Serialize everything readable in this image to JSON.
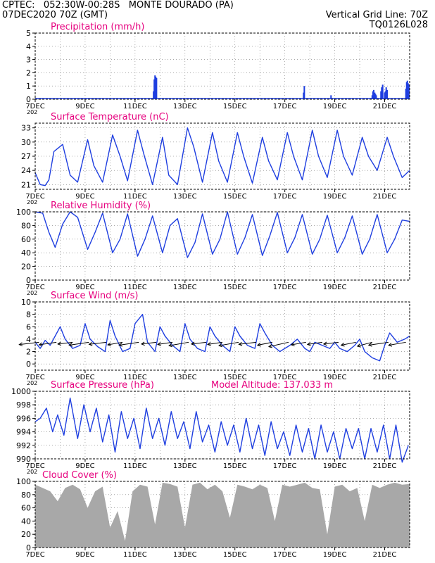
{
  "header": {
    "line1": "CPTEC:   052:30W-00:28S   MONTE DOURADO (PA)",
    "line2": "07DEC2020 70Z (GMT)",
    "grid_note": "Vertical Grid Line: 70Z",
    "model_id": "TQ0126L028",
    "model_altitude": "Model Altitude: 137.033 m",
    "text_color": "#ff8c00",
    "title_color": "#e6007e",
    "series_color": "#1f3fe0",
    "cloud_color": "#a8a8a8"
  },
  "x_axis": {
    "tick_labels": [
      "7DEC",
      "9DEC",
      "11DEC",
      "13DEC",
      "15DEC",
      "17DEC",
      "19DEC",
      "21DEC"
    ],
    "tick_days": [
      0,
      2,
      4,
      6,
      8,
      10,
      12,
      14
    ],
    "range_days": [
      0,
      15
    ],
    "clipped_year_label": "202"
  },
  "chart_data": [
    {
      "type": "bar",
      "title": "Precipitation (mm/h)",
      "ylim": [
        0,
        5
      ],
      "yticks": [
        0,
        1,
        2,
        3,
        4,
        5
      ],
      "grid": true,
      "series": [
        {
          "x_days": [
            4.74,
            4.77,
            4.8,
            4.83,
            4.86,
            10.75,
            10.78,
            11.85,
            13.5,
            13.53,
            13.56,
            13.6,
            13.63,
            13.66,
            13.85,
            13.88,
            13.92,
            14.0,
            14.03,
            14.06,
            14.1,
            14.85,
            14.88,
            14.91,
            14.94,
            14.97
          ],
          "values": [
            0.6,
            1.5,
            1.8,
            1.7,
            1.6,
            0.5,
            1.0,
            0.3,
            0.3,
            0.6,
            0.7,
            0.5,
            0.4,
            0.3,
            0.6,
            0.9,
            1.1,
            0.5,
            0.6,
            0.9,
            0.7,
            0.8,
            1.3,
            1.4,
            1.2,
            1.1
          ]
        }
      ]
    },
    {
      "type": "line",
      "title": "Surface Temperature (nC)",
      "ylim": [
        20,
        34
      ],
      "yticks": [
        21,
        24,
        27,
        30,
        33
      ],
      "grid": true,
      "series": [
        {
          "x_days": [
            0,
            0.2,
            0.4,
            0.55,
            0.75,
            1.1,
            1.4,
            1.7,
            2.1,
            2.35,
            2.7,
            3.1,
            3.4,
            3.7,
            4.1,
            4.35,
            4.7,
            5.1,
            5.35,
            5.7,
            6.1,
            6.35,
            6.7,
            7.1,
            7.35,
            7.7,
            8.1,
            8.35,
            8.7,
            9.1,
            9.35,
            9.7,
            10.1,
            10.35,
            10.7,
            11.1,
            11.35,
            11.7,
            12.1,
            12.35,
            12.7,
            13.1,
            13.35,
            13.7,
            14.1,
            14.35,
            14.7,
            15.0
          ],
          "values": [
            23.5,
            21.0,
            20.8,
            22.0,
            28.0,
            29.5,
            23.0,
            21.5,
            30.5,
            25.0,
            21.5,
            31.5,
            27.0,
            21.8,
            32.5,
            27.5,
            21.0,
            31.0,
            23.0,
            21.0,
            33.0,
            29.0,
            21.5,
            32.0,
            26.0,
            21.5,
            32.0,
            27.0,
            21.3,
            31.0,
            26.0,
            22.0,
            32.0,
            27.0,
            22.0,
            32.5,
            27.0,
            22.5,
            32.5,
            27.0,
            23.0,
            31.0,
            27.0,
            24.0,
            31.0,
            27.0,
            22.5,
            24.0
          ]
        }
      ]
    },
    {
      "type": "line",
      "title": "Relative Humidity (%)",
      "ylim": [
        0,
        100
      ],
      "yticks": [
        0,
        20,
        40,
        60,
        80,
        100
      ],
      "grid": true,
      "series": [
        {
          "x_days": [
            0,
            0.3,
            0.55,
            0.8,
            1.1,
            1.4,
            1.7,
            2.1,
            2.4,
            2.7,
            3.1,
            3.4,
            3.7,
            4.1,
            4.4,
            4.7,
            5.1,
            5.4,
            5.7,
            6.1,
            6.4,
            6.7,
            7.1,
            7.4,
            7.7,
            8.1,
            8.4,
            8.7,
            9.1,
            9.4,
            9.7,
            10.1,
            10.4,
            10.7,
            11.1,
            11.4,
            11.7,
            12.1,
            12.4,
            12.7,
            13.1,
            13.4,
            13.7,
            14.1,
            14.4,
            14.7,
            15.0
          ],
          "values": [
            100,
            98,
            70,
            48,
            82,
            100,
            92,
            45,
            70,
            98,
            40,
            60,
            97,
            35,
            60,
            94,
            40,
            80,
            90,
            33,
            55,
            97,
            38,
            60,
            100,
            38,
            62,
            96,
            36,
            65,
            99,
            40,
            62,
            96,
            38,
            60,
            95,
            40,
            62,
            94,
            38,
            60,
            96,
            40,
            60,
            88,
            86
          ]
        }
      ]
    },
    {
      "type": "line",
      "title": "Surface Wind (m/s)",
      "ylim": [
        -1,
        10
      ],
      "yticks": [
        0,
        2,
        4,
        6,
        8,
        10
      ],
      "grid": true,
      "series": [
        {
          "x_days": [
            0,
            0.2,
            0.4,
            0.6,
            0.8,
            1.0,
            1.2,
            1.5,
            1.8,
            2.0,
            2.2,
            2.5,
            2.8,
            3.0,
            3.2,
            3.5,
            3.8,
            4.0,
            4.3,
            4.5,
            4.8,
            5.0,
            5.2,
            5.5,
            5.8,
            6.0,
            6.2,
            6.5,
            6.8,
            7.0,
            7.2,
            7.5,
            7.8,
            8.0,
            8.2,
            8.5,
            8.8,
            9.0,
            9.2,
            9.5,
            9.8,
            10.0,
            10.2,
            10.5,
            10.8,
            11.0,
            11.2,
            11.5,
            11.8,
            12.0,
            12.2,
            12.5,
            12.8,
            13.0,
            13.2,
            13.5,
            13.8,
            14.0,
            14.2,
            14.5,
            14.8,
            15.0
          ],
          "values": [
            3.5,
            2.5,
            3.8,
            3.0,
            4.5,
            6.0,
            4.0,
            2.5,
            3.0,
            6.5,
            4.0,
            2.8,
            2.0,
            7.0,
            4.5,
            2.0,
            2.5,
            6.5,
            8.0,
            3.5,
            2.0,
            6.0,
            4.5,
            3.0,
            2.0,
            6.5,
            4.0,
            2.5,
            2.0,
            6.0,
            4.5,
            3.0,
            2.0,
            6.0,
            4.5,
            3.0,
            2.5,
            6.5,
            5.0,
            3.0,
            2.0,
            2.5,
            3.0,
            4.0,
            2.5,
            2.0,
            3.5,
            3.0,
            2.5,
            3.5,
            2.5,
            2.0,
            3.0,
            4.0,
            2.0,
            1.0,
            0.5,
            3.0,
            5.0,
            3.5,
            4.0,
            4.5
          ]
        }
      ],
      "wind_arrows": {
        "x_days": [
          0.15,
          0.85,
          1.5,
          2.15,
          2.85,
          3.5,
          4.15,
          4.85,
          5.5,
          6.15,
          6.85,
          7.5,
          8.15,
          8.85,
          9.5,
          10.15,
          10.85,
          11.5,
          12.15,
          12.85,
          13.5,
          14.15,
          14.85
        ],
        "speed": [
          4,
          3.5,
          3,
          4,
          3.5,
          3,
          4,
          3,
          3,
          4,
          3,
          3,
          4,
          3.5,
          3,
          4,
          3,
          3,
          3,
          3,
          3,
          4,
          3.5
        ],
        "direction_from_deg": [
          70,
          65,
          70,
          65,
          70,
          60,
          65,
          70,
          65,
          60,
          70,
          65,
          60,
          70,
          55,
          50,
          60,
          65,
          70,
          55,
          40,
          65,
          60
        ]
      }
    },
    {
      "type": "line",
      "title": "Surface Pressure (hPa)",
      "ylim": [
        990,
        1000
      ],
      "yticks": [
        990,
        992,
        994,
        996,
        998,
        1000
      ],
      "grid": true,
      "series": [
        {
          "x_days": [
            0,
            0.2,
            0.45,
            0.7,
            0.9,
            1.15,
            1.4,
            1.7,
            1.95,
            2.2,
            2.45,
            2.7,
            2.95,
            3.2,
            3.45,
            3.7,
            3.95,
            4.2,
            4.45,
            4.7,
            4.95,
            5.2,
            5.45,
            5.7,
            5.95,
            6.2,
            6.45,
            6.7,
            6.95,
            7.2,
            7.45,
            7.7,
            7.95,
            8.2,
            8.45,
            8.7,
            8.95,
            9.2,
            9.45,
            9.7,
            9.95,
            10.2,
            10.45,
            10.7,
            10.95,
            11.2,
            11.45,
            11.7,
            11.95,
            12.2,
            12.45,
            12.7,
            12.95,
            13.2,
            13.45,
            13.7,
            13.95,
            14.2,
            14.45,
            14.7,
            14.95
          ],
          "values": [
            995.5,
            996.0,
            997.5,
            994.0,
            996.5,
            993.5,
            999.0,
            993.0,
            998.0,
            994.0,
            997.5,
            992.5,
            996.5,
            991.0,
            997.0,
            993.0,
            996.0,
            991.5,
            997.5,
            993.0,
            996.0,
            992.0,
            997.0,
            993.0,
            995.5,
            991.5,
            997.0,
            992.5,
            995.0,
            991.0,
            995.5,
            992.0,
            995.0,
            991.0,
            996.0,
            991.5,
            995.0,
            990.5,
            995.5,
            991.5,
            994.0,
            990.5,
            995.0,
            991.0,
            994.5,
            990.0,
            995.0,
            991.0,
            994.0,
            990.0,
            994.5,
            991.5,
            994.5,
            990.0,
            994.5,
            991.0,
            995.0,
            990.0,
            995.0,
            989.5,
            992.0
          ]
        }
      ]
    },
    {
      "type": "area",
      "title": "Cloud Cover (%)",
      "ylim": [
        0,
        100
      ],
      "yticks": [
        0,
        20,
        40,
        60,
        80,
        100
      ],
      "grid": true,
      "series": [
        {
          "x_days": [
            0,
            0.3,
            0.6,
            0.9,
            1.2,
            1.5,
            1.8,
            2.1,
            2.4,
            2.7,
            3.0,
            3.3,
            3.6,
            3.9,
            4.2,
            4.5,
            4.8,
            5.1,
            5.4,
            5.7,
            6.0,
            6.3,
            6.6,
            6.9,
            7.2,
            7.5,
            7.8,
            8.1,
            8.4,
            8.7,
            9.0,
            9.3,
            9.6,
            9.9,
            10.2,
            10.5,
            10.8,
            11.1,
            11.4,
            11.7,
            12.0,
            12.3,
            12.6,
            12.9,
            13.2,
            13.5,
            13.8,
            14.1,
            14.4,
            14.7,
            15.0
          ],
          "values": [
            95,
            90,
            85,
            70,
            90,
            95,
            88,
            60,
            85,
            92,
            30,
            55,
            10,
            85,
            95,
            92,
            35,
            98,
            96,
            92,
            30,
            95,
            98,
            88,
            95,
            85,
            45,
            95,
            92,
            88,
            95,
            90,
            40,
            95,
            92,
            95,
            98,
            90,
            88,
            20,
            92,
            95,
            85,
            90,
            40,
            95,
            90,
            95,
            98,
            95,
            96
          ]
        }
      ]
    }
  ]
}
